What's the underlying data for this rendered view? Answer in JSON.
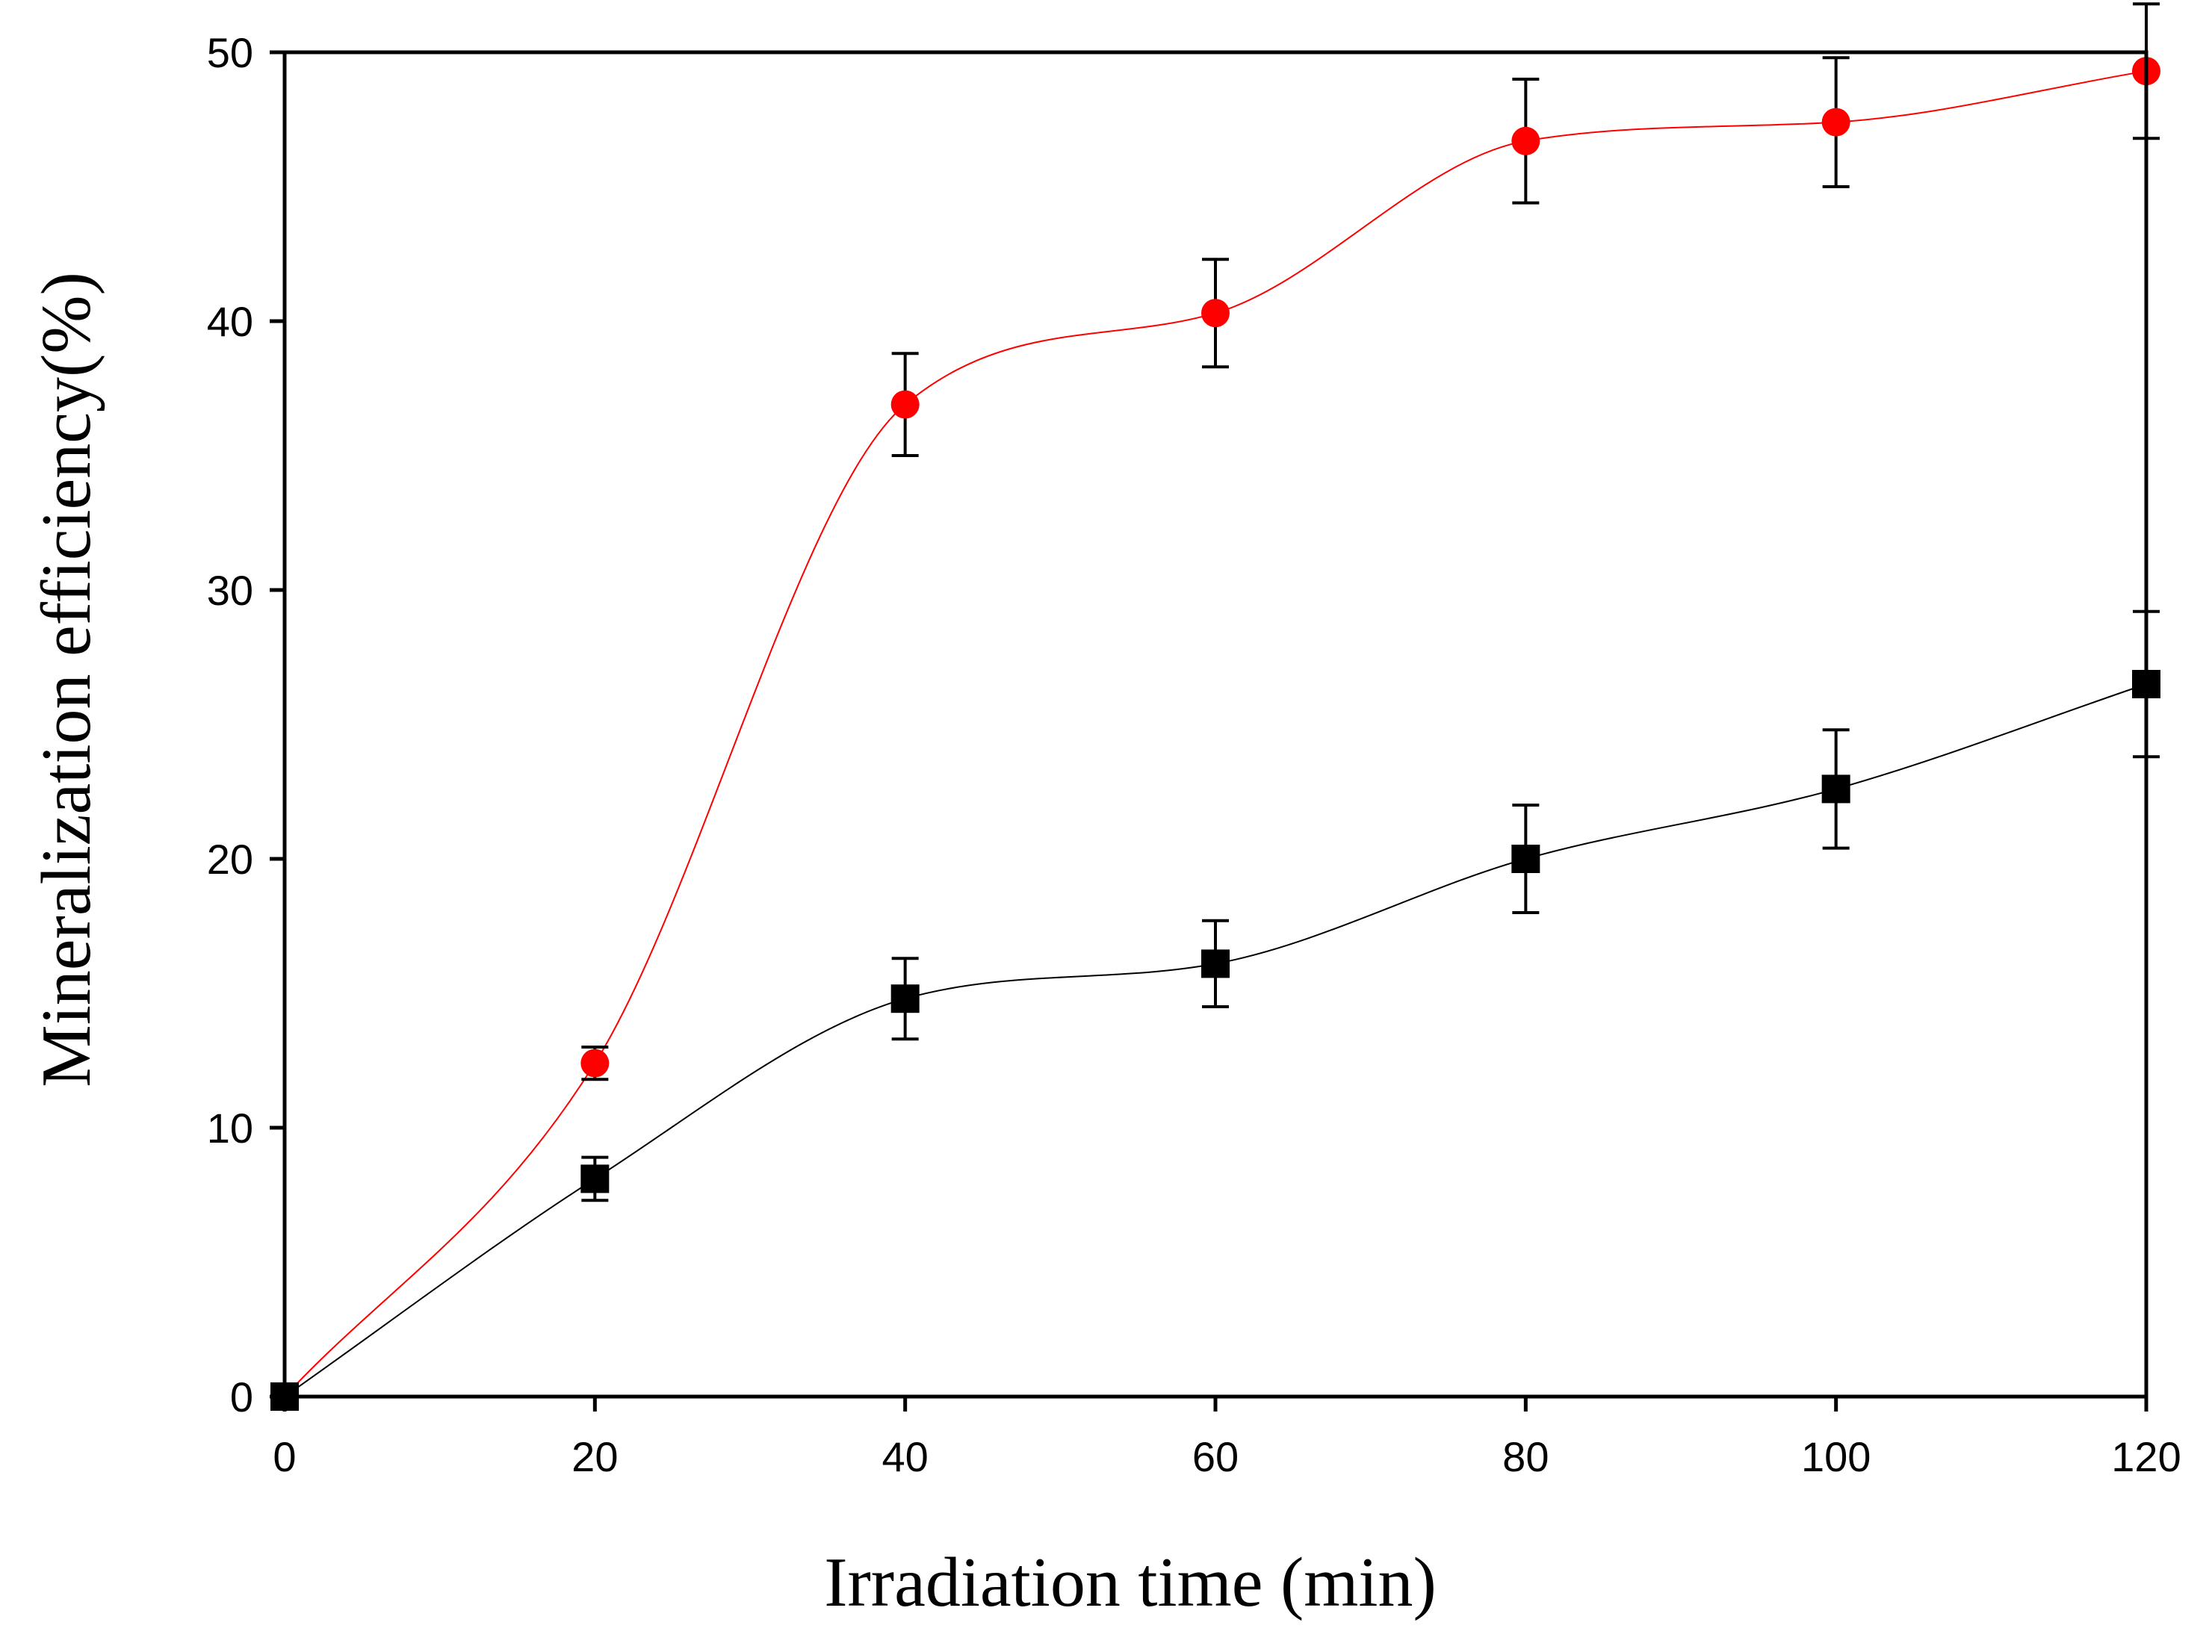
{
  "chart_data": {
    "type": "line",
    "title": "",
    "xlabel": "Irradiation time (min)",
    "ylabel": "Mineralization efficiency(%)",
    "xlim": [
      0,
      120
    ],
    "ylim": [
      0,
      50
    ],
    "x_ticks": [
      0,
      20,
      40,
      60,
      80,
      100,
      120
    ],
    "y_ticks": [
      0,
      10,
      20,
      30,
      40,
      50
    ],
    "grid": false,
    "legend": null,
    "series": [
      {
        "name": "series-red-circles",
        "color": "#ff0000",
        "marker": "circle",
        "x": [
          0,
          20,
          40,
          60,
          80,
          100,
          120
        ],
        "values": [
          0,
          12.4,
          36.9,
          40.3,
          46.7,
          47.4,
          49.3
        ],
        "error": [
          0,
          0.6,
          1.9,
          2.0,
          2.3,
          2.4,
          2.5
        ]
      },
      {
        "name": "series-black-squares",
        "color": "#000000",
        "marker": "square",
        "x": [
          0,
          20,
          40,
          60,
          80,
          100,
          120
        ],
        "values": [
          0,
          8.1,
          14.8,
          16.1,
          20.0,
          22.6,
          26.5
        ],
        "error": [
          0,
          0.8,
          1.5,
          1.6,
          2.0,
          2.2,
          2.7
        ]
      }
    ]
  }
}
